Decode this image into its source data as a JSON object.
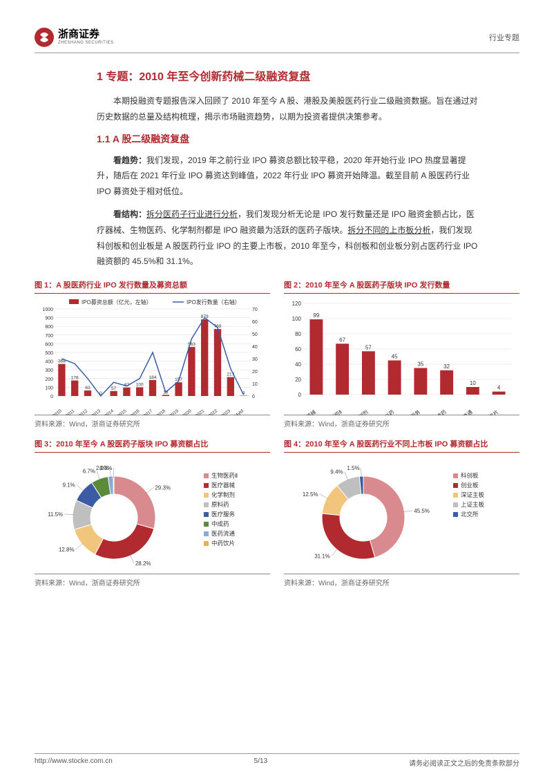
{
  "header": {
    "logo_cn": "浙商证券",
    "logo_en": "ZHESHANG SECURITIES",
    "logo_symbol": "㊛",
    "right_label": "行业专题"
  },
  "main": {
    "h1": "1 专题：2010 年至今创新药械二级融资复盘",
    "intro": "本期投融资专题报告深入回顾了 2010 年至今 A 股、港股及美股医药行业二级融资数据。旨在通过对历史数据的总量及结构梳理，揭示市场融资趋势，以期为投资者提供决策参考。",
    "h2": "1.1 A 股二级融资复盘",
    "p1_bold": "看趋势：",
    "p1": "我们发现，2019 年之前行业 IPO 募资总额比较平稳，2020 年开始行业 IPO 热度显著提升，随后在 2021 年行业 IPO 募资达到峰值，2022 年行业 IPO 募资开始降温。截至目前 A 股医药行业 IPO 募资处于相对低位。",
    "p2_bold": "看结构：",
    "p2_u1": "拆分医药子行业进行分析",
    "p2_mid": "，我们发现分析无论是 IPO 发行数量还是 IPO 融资金额占比，医疗器械、生物医药、化学制剂都是 IPO 融资最为活跃的医药子版块。",
    "p2_u2": "拆分不同的上市板分析",
    "p2_end": "，我们发现科创板和创业板是 A 股医药行业 IPO 的主要上市板，2010 年至今，科创板和创业板分别占医药行业 IPO 融资额的 45.5%和 31.1%。"
  },
  "chart1": {
    "title": "图 1：A 股医药行业 IPO 发行数量及募资总额",
    "source": "资料来源：Wind，浙商证券研究所",
    "legend_bar": "IPO募资总额（亿元，左轴）",
    "legend_line": "IPO发行数量（右轴）",
    "x": [
      "2010",
      "2011",
      "2012",
      "2013",
      "2014",
      "2015",
      "2016",
      "2017",
      "2018",
      "2019",
      "2020",
      "2021",
      "2022",
      "2023",
      "2024ytd"
    ],
    "bars": [
      368,
      178,
      63,
      0,
      57,
      97,
      100,
      184,
      13,
      157,
      563,
      879,
      769,
      217,
      4
    ],
    "line": [
      30,
      26,
      14,
      0,
      11,
      8,
      14,
      35,
      3,
      12,
      46,
      63,
      55,
      22,
      1
    ],
    "y_left_max": 1000,
    "y_left_step": 100,
    "y_right_max": 70,
    "y_right_step": 10,
    "colors": {
      "bar": "#b02a30",
      "line": "#3b5ba5",
      "grid": "#d9d9d9",
      "text": "#333333"
    }
  },
  "chart2": {
    "title": "图 2：2010 年至今 A 股医药子版块 IPO 发行数量",
    "source": "资料来源：Wind，浙商证券研究所",
    "x": [
      "医疗器械",
      "生物医药Ⅱ",
      "化学制剂",
      "原料药",
      "医疗服务",
      "中成药",
      "医药流通",
      "中药饮片"
    ],
    "bars": [
      99,
      67,
      57,
      45,
      35,
      32,
      10,
      4
    ],
    "y_max": 120,
    "y_step": 20,
    "colors": {
      "bar": "#b02a30",
      "grid": "#d9d9d9",
      "text": "#333333"
    }
  },
  "chart3": {
    "title": "图 3：2010 年至今 A 股医药子版块 IPO 募资额占比",
    "source": "资料来源：Wind，浙商证券研究所",
    "slices": [
      {
        "label": "生物医药Ⅱ",
        "value": 29.3,
        "color": "#d88a8e"
      },
      {
        "label": "医疗器械",
        "value": 28.2,
        "color": "#b02a30"
      },
      {
        "label": "化学制剂",
        "value": 12.8,
        "color": "#f2c57c"
      },
      {
        "label": "原料药",
        "value": 11.5,
        "color": "#bfbfbf"
      },
      {
        "label": "医疗服务",
        "value": 9.1,
        "color": "#3b5ba5"
      },
      {
        "label": "中成药",
        "value": 6.7,
        "color": "#5a8a3a"
      },
      {
        "label": "医药流通",
        "value": 2.0,
        "color": "#8aa9d6"
      },
      {
        "label": "中药饮片",
        "value": 0.3,
        "color": "#e8b04f"
      }
    ]
  },
  "chart4": {
    "title": "图 4：2010 年至今 A 股医药行业不同上市板 IPO 募资额占比",
    "source": "资料来源：Wind，浙商证券研究所",
    "slices": [
      {
        "label": "科创板",
        "value": 45.5,
        "color": "#d88a8e"
      },
      {
        "label": "创业板",
        "value": 31.1,
        "color": "#b02a30"
      },
      {
        "label": "深证主板",
        "value": 12.5,
        "color": "#f2c57c"
      },
      {
        "label": "上证主板",
        "value": 9.4,
        "color": "#bfbfbf"
      },
      {
        "label": "北交所",
        "value": 1.5,
        "color": "#3b5ba5"
      }
    ]
  },
  "footer": {
    "left": "http://www.stocke.com.cn",
    "center": "5/13",
    "right": "请务必阅读正文之后的免责条款部分"
  }
}
